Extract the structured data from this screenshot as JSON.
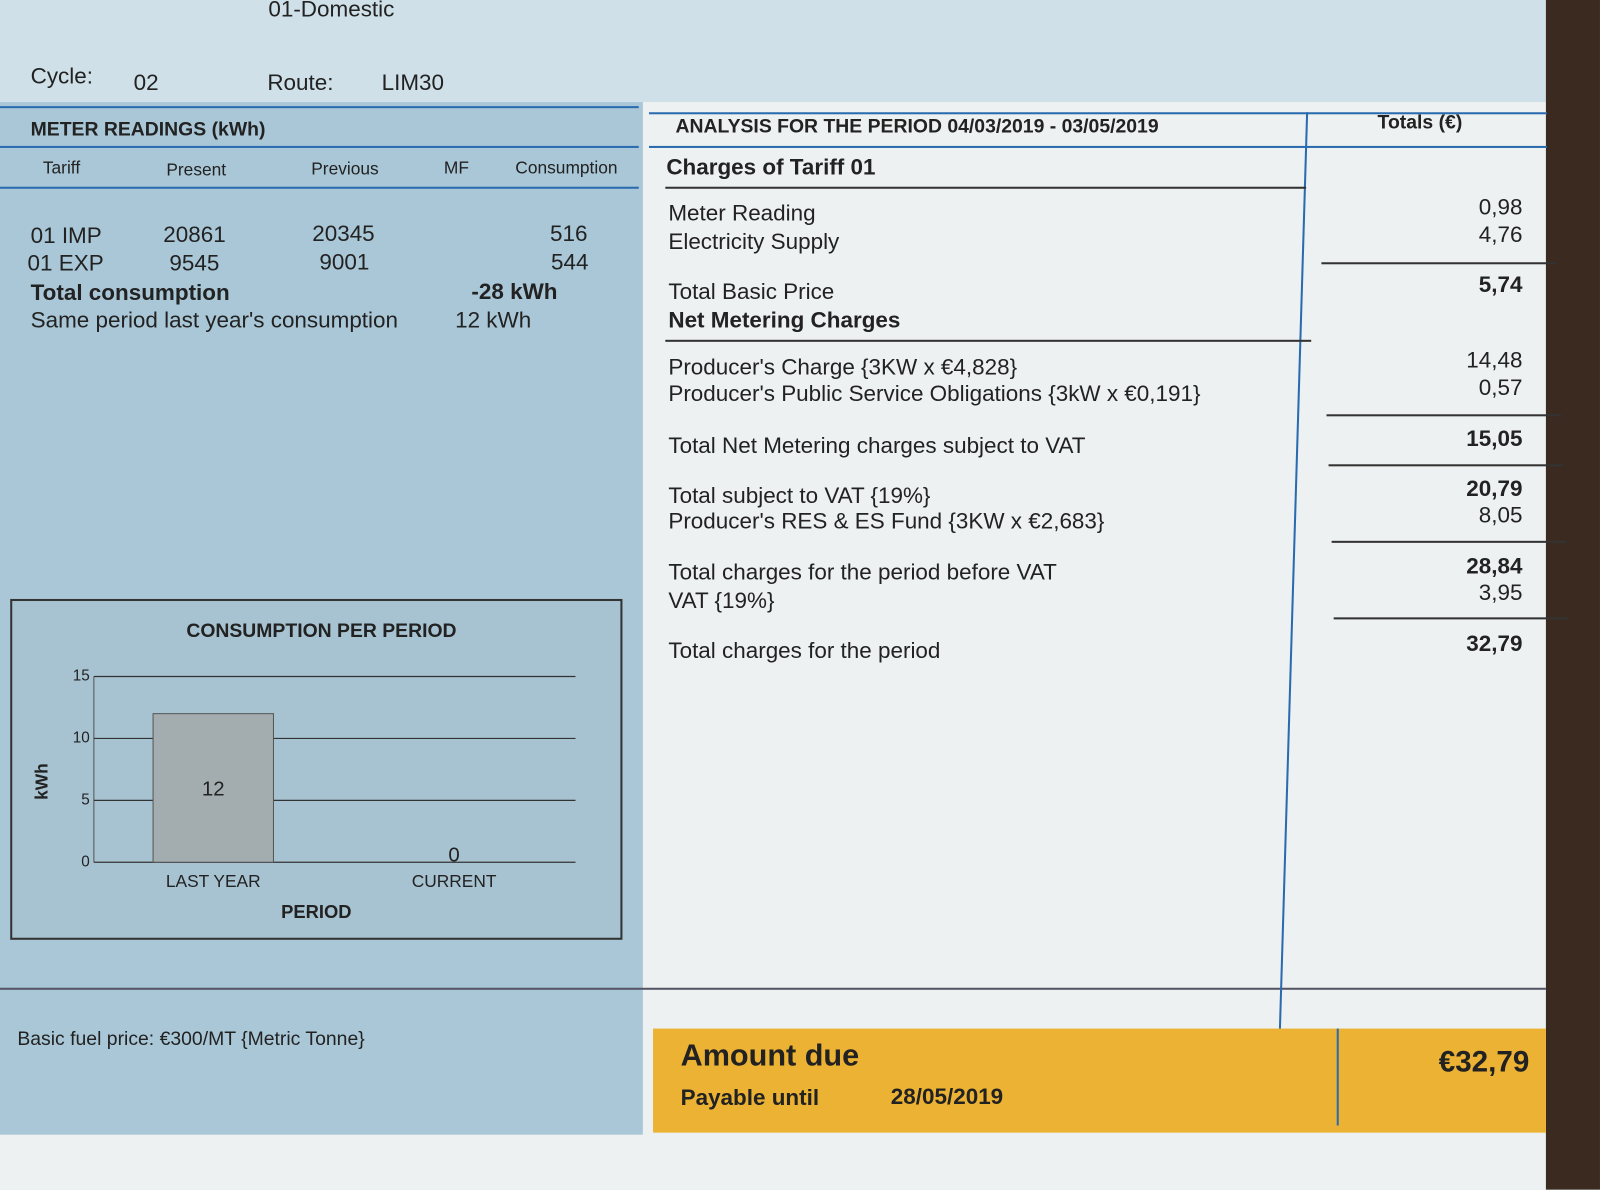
{
  "header": {
    "tariff": "01-Domestic",
    "cycle_label": "Cycle:",
    "cycle": "02",
    "route_label": "Route:",
    "route": "LIM30"
  },
  "meter_readings": {
    "title": "METER READINGS (kWh)",
    "columns": [
      "Tariff",
      "Present",
      "Previous",
      "MF",
      "Consumption"
    ],
    "rows": [
      {
        "tariff": "01 IMP",
        "present": 20861,
        "previous": 20345,
        "consumption": 516
      },
      {
        "tariff": "01 EXP",
        "present": 9545,
        "previous": 9001,
        "consumption": 544
      }
    ],
    "total_consumption": {
      "label": "Total consumption",
      "value": "-28 kWh"
    },
    "same_period_last_year": {
      "label": "Same period last year's consumption",
      "value": "12 kWh"
    }
  },
  "chart": {
    "type": "bar",
    "title": "CONSUMPTION PER PERIOD",
    "y_label": "kWh",
    "x_label": "PERIOD",
    "categories": [
      "LAST YEAR",
      "CURRENT"
    ],
    "values": [
      12,
      0
    ],
    "color": "#a3adb0",
    "ylim": [
      0,
      15
    ],
    "yticks": [
      0,
      5,
      10,
      15
    ],
    "grid": true
  },
  "analysis": {
    "title": "ANALYSIS FOR THE PERIOD 04/03/2019 - 03/05/2019",
    "totals_header": "Totals (€)",
    "lines": [
      {
        "label": "Charges of Tariff 01"
      },
      {
        "label": "Meter Reading",
        "amount": "0,98"
      },
      {
        "label": "Electricity Supply",
        "amount": "4,76"
      },
      {
        "label": "Total Basic Price",
        "amount": "5,74"
      },
      {
        "label": "Net Metering Charges"
      },
      {
        "label": "Producer's Charge {3KW x €4,828}",
        "amount": "14,48"
      },
      {
        "label": "Producer's Public Service Obligations {3kW x €0,191}",
        "amount": "0,57"
      },
      {
        "label": "Total Net Metering charges subject to VAT",
        "amount": "15,05"
      },
      {
        "label": "Total subject to VAT {19%}",
        "amount": "20,79"
      },
      {
        "label": "Producer's RES & ES Fund {3KW x €2,683}",
        "amount": "8,05"
      },
      {
        "label": "Total charges for the period before VAT",
        "amount": "28,84"
      },
      {
        "label": "VAT {19%}",
        "amount": "3,95"
      },
      {
        "label": "Total charges for the period",
        "amount": "32,79"
      }
    ]
  },
  "footer": {
    "fuel_price": "Basic fuel price: €300/MT {Metric Tonne}"
  },
  "amount_due": {
    "label": "Amount due",
    "payable_label": "Payable until",
    "date": "28/05/2019",
    "amount": "€32,79"
  }
}
